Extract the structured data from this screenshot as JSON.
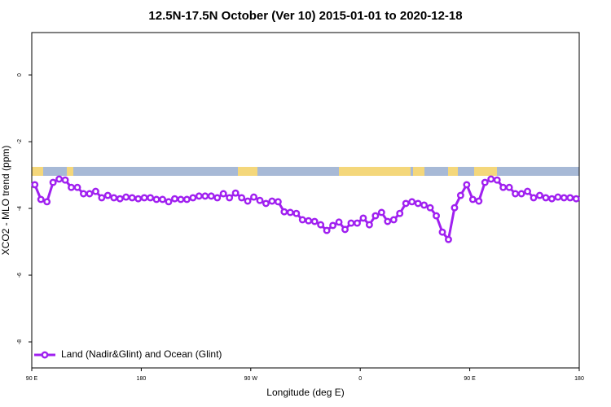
{
  "chart_data": {
    "type": "line",
    "title": "12.5N-17.5N October (Ver 10)   2015-01-01 to 2020-12-18",
    "x_label": "Longitude (deg E)",
    "y_label": "XCO2 - MLO trend (ppm)",
    "x": [
      92.5,
      97.5,
      102.5,
      107.5,
      112.5,
      117.5,
      122.5,
      127.5,
      132.5,
      137.5,
      142.5,
      147.5,
      152.5,
      157.5,
      162.5,
      167.5,
      172.5,
      177.5,
      182.5,
      187.5,
      192.5,
      197.5,
      202.5,
      207.5,
      212.5,
      217.5,
      222.5,
      227.5,
      232.5,
      237.5,
      242.5,
      247.5,
      252.5,
      257.5,
      262.5,
      267.5,
      272.5,
      277.5,
      282.5,
      287.5,
      292.5,
      297.5,
      302.5,
      307.5,
      312.5,
      317.5,
      322.5,
      327.5,
      332.5,
      337.5,
      342.5,
      347.5,
      352.5,
      357.5,
      362.5,
      367.5,
      372.5,
      377.5,
      382.5,
      387.5,
      392.5,
      397.5,
      402.5,
      407.5,
      412.5,
      417.5,
      422.5,
      427.5,
      432.5,
      437.5,
      442.5,
      447.5,
      452.5,
      457.5,
      462.5,
      467.5,
      472.5,
      477.5,
      482.5,
      487.5,
      492.5,
      497.5,
      502.5,
      507.5,
      512.5,
      517.5,
      522.5,
      527.5,
      532.5,
      537.5
    ],
    "series": [
      {
        "name": "Land (Nadir&Glint) and Ocean (Glint)",
        "color": "#a020f0",
        "values": [
          -3.29,
          -3.73,
          -3.8,
          -3.22,
          -3.12,
          -3.15,
          -3.37,
          -3.37,
          -3.56,
          -3.56,
          -3.49,
          -3.68,
          -3.61,
          -3.68,
          -3.71,
          -3.66,
          -3.68,
          -3.71,
          -3.68,
          -3.68,
          -3.73,
          -3.73,
          -3.8,
          -3.71,
          -3.73,
          -3.73,
          -3.68,
          -3.63,
          -3.63,
          -3.63,
          -3.68,
          -3.56,
          -3.68,
          -3.54,
          -3.68,
          -3.78,
          -3.66,
          -3.76,
          -3.85,
          -3.78,
          -3.8,
          -4.1,
          -4.12,
          -4.15,
          -4.34,
          -4.37,
          -4.39,
          -4.49,
          -4.66,
          -4.51,
          -4.41,
          -4.63,
          -4.44,
          -4.44,
          -4.29,
          -4.49,
          -4.22,
          -4.12,
          -4.39,
          -4.34,
          -4.15,
          -3.85,
          -3.8,
          -3.85,
          -3.9,
          -3.98,
          -4.22,
          -4.71,
          -4.93,
          -3.98,
          -3.61,
          -3.29,
          -3.73,
          -3.78,
          -3.22,
          -3.12,
          -3.15,
          -3.37,
          -3.37,
          -3.56,
          -3.56,
          -3.49,
          -3.68,
          -3.61,
          -3.68,
          -3.71,
          -3.66,
          -3.68,
          -3.68,
          -3.71
        ]
      }
    ],
    "xlim": [
      90,
      540
    ],
    "xticks": [
      {
        "value": 90,
        "label": "90 E"
      },
      180,
      {
        "value": 270,
        "label": "90 W"
      },
      {
        "value": 360,
        "label": "0"
      },
      {
        "value": 450,
        "label": "90 E"
      },
      {
        "value": 540,
        "label": "180"
      }
    ],
    "ylim": [
      -8.78,
      1.27
    ],
    "yticks": [
      0,
      -2,
      -4,
      -6,
      -8
    ],
    "legend": "bottom-left"
  }
}
